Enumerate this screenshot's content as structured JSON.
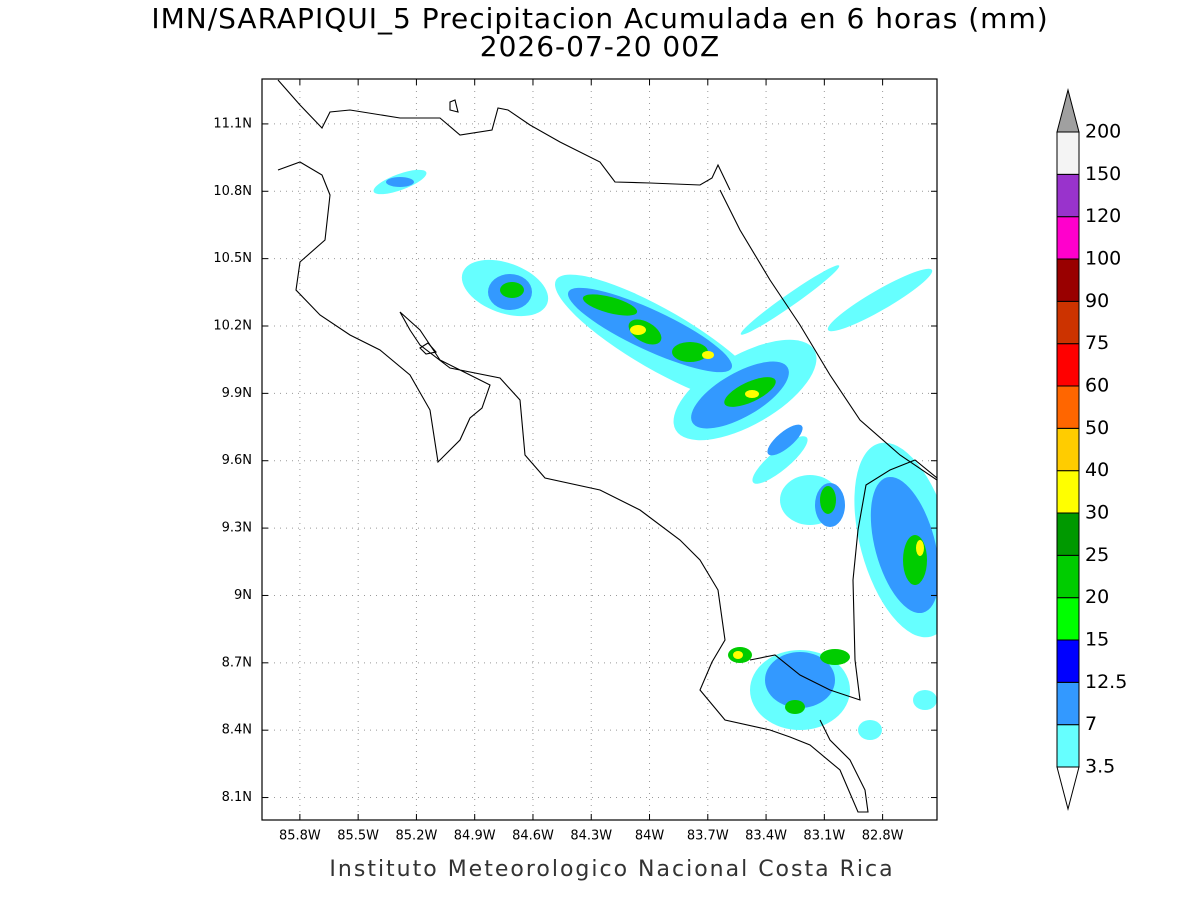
{
  "title": "IMN/SARAPIQUI_5 Precipitacion Acumulada en 6 horas (mm)",
  "subtitle": "2026-07-20 00Z",
  "footer": "Instituto Meteorologico Nacional Costa Rica",
  "map": {
    "xlim": [
      -85.995,
      -82.52
    ],
    "ylim": [
      8.0,
      11.3
    ],
    "xticks": [
      {
        "value": -85.8,
        "label": "85.8W"
      },
      {
        "value": -85.5,
        "label": "85.5W"
      },
      {
        "value": -85.2,
        "label": "85.2W"
      },
      {
        "value": -84.9,
        "label": "84.9W"
      },
      {
        "value": -84.6,
        "label": "84.6W"
      },
      {
        "value": -84.3,
        "label": "84.3W"
      },
      {
        "value": -84.0,
        "label": "84W"
      },
      {
        "value": -83.7,
        "label": "83.7W"
      },
      {
        "value": -83.4,
        "label": "83.4W"
      },
      {
        "value": -83.1,
        "label": "83.1W"
      },
      {
        "value": -82.8,
        "label": "82.8W"
      }
    ],
    "yticks": [
      {
        "value": 8.1,
        "label": "8.1N"
      },
      {
        "value": 8.4,
        "label": "8.4N"
      },
      {
        "value": 8.7,
        "label": "8.7N"
      },
      {
        "value": 9.0,
        "label": "9N"
      },
      {
        "value": 9.3,
        "label": "9.3N"
      },
      {
        "value": 9.6,
        "label": "9.6N"
      },
      {
        "value": 9.9,
        "label": "9.9N"
      },
      {
        "value": 10.2,
        "label": "10.2N"
      },
      {
        "value": 10.5,
        "label": "10.5N"
      },
      {
        "value": 10.8,
        "label": "10.8N"
      },
      {
        "value": 11.1,
        "label": "11.1N"
      }
    ],
    "grid": true
  },
  "colorbar": {
    "levels": [
      3.5,
      7,
      12.5,
      15,
      20,
      25,
      30,
      40,
      50,
      60,
      75,
      90,
      100,
      120,
      150,
      200
    ],
    "colors": [
      "#66ffff",
      "#3399ff",
      "#0000ff",
      "#00ff00",
      "#00cc00",
      "#009900",
      "#ffff00",
      "#ffcc00",
      "#ff6600",
      "#ff0000",
      "#cc3300",
      "#990000",
      "#ff00cc",
      "#9933cc",
      "#f4f4f4"
    ],
    "lower_color": "#ffffff",
    "upper_color": "#a0a0a0"
  }
}
